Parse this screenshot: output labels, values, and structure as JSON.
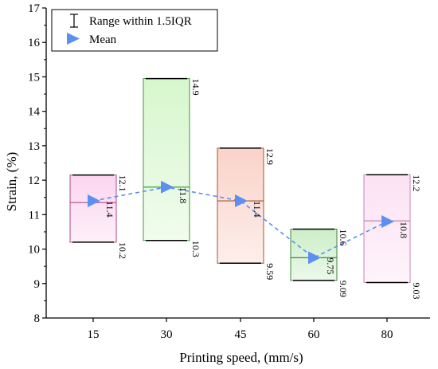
{
  "chart_data": {
    "type": "box",
    "xlabel": "Printing speed, (mm/s)",
    "ylabel": "Strain, (%)",
    "ylim": [
      8,
      17
    ],
    "yticks": [
      8,
      9,
      10,
      11,
      12,
      13,
      14,
      15,
      16,
      17
    ],
    "categories": [
      "15",
      "30",
      "45",
      "60",
      "80"
    ],
    "legend": {
      "placement": "top-left",
      "entries": [
        "Range within 1.5IQR",
        "Mean"
      ]
    },
    "mean_color": "#5B8FF0",
    "boxes": [
      {
        "category": "15",
        "min": 10.2,
        "q1": 10.2,
        "median": 11.35,
        "q3": 12.15,
        "max": 12.15,
        "mean": 11.4,
        "labels": {
          "max": "12.1",
          "mean": "11.4",
          "min": "10.2"
        },
        "fill": "#FBD3EE",
        "edge": "#B04A8A"
      },
      {
        "category": "30",
        "min": 10.25,
        "q1": 10.25,
        "median": 11.8,
        "q3": 14.95,
        "max": 14.95,
        "mean": 11.8,
        "labels": {
          "max": "14.9",
          "mean": "11.8",
          "min": "10.3"
        },
        "fill": "#D5F6CB",
        "edge": "#3F9A3A"
      },
      {
        "category": "45",
        "min": 9.59,
        "q1": 9.59,
        "median": 11.4,
        "q3": 12.93,
        "max": 12.93,
        "mean": 11.4,
        "labels": {
          "max": "12.9",
          "mean": "11.4",
          "min": "9.59"
        },
        "fill": "#FAD0C6",
        "edge": "#A5532E"
      },
      {
        "category": "60",
        "min": 9.09,
        "q1": 9.09,
        "median": 9.75,
        "q3": 10.58,
        "max": 10.58,
        "mean": 9.75,
        "labels": {
          "max": "10.6",
          "mean": "9.75",
          "min": "9.09"
        },
        "fill": "#C9EDC4",
        "edge": "#3F8A3A"
      },
      {
        "category": "80",
        "min": 9.03,
        "q1": 9.03,
        "median": 10.82,
        "q3": 12.16,
        "max": 12.16,
        "mean": 10.8,
        "labels": {
          "max": "12.2",
          "mean": "10.8",
          "min": "9.03"
        },
        "fill": "#FCE0F3",
        "edge": "#C985B3"
      }
    ]
  }
}
